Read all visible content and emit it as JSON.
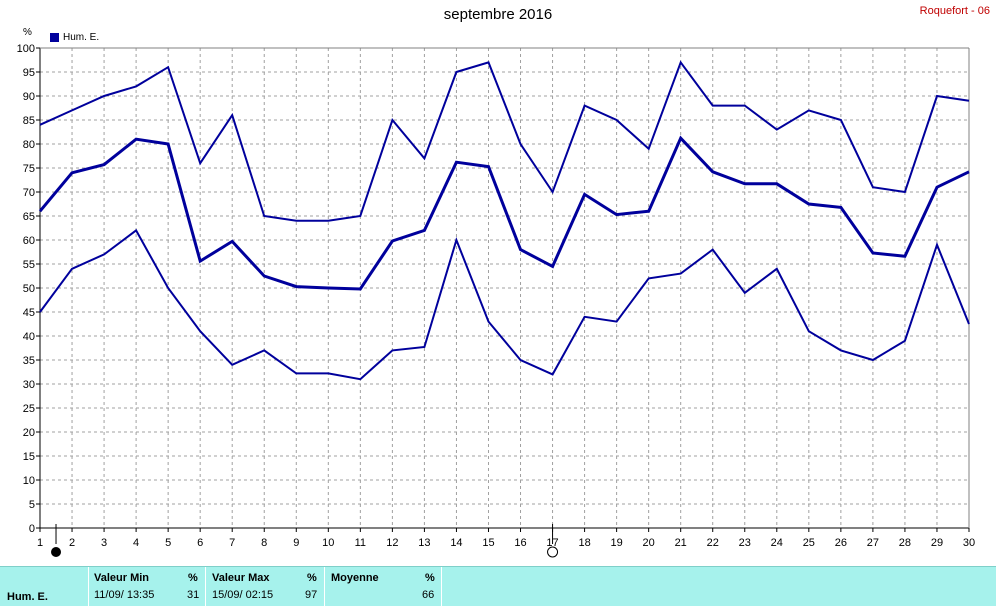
{
  "title": "septembre 2016",
  "station": "Roquefort - 06",
  "legend_label": "Hum. E.",
  "unit": "%",
  "colors": {
    "line": "#00009c",
    "grid": "#a0a0a0",
    "stats_bg": "#a6f2ec"
  },
  "chart_data": {
    "type": "line",
    "x": [
      1,
      2,
      3,
      4,
      5,
      6,
      7,
      8,
      9,
      10,
      11,
      12,
      13,
      14,
      15,
      16,
      17,
      18,
      19,
      20,
      21,
      22,
      23,
      24,
      25,
      26,
      27,
      28,
      29,
      30
    ],
    "xlim": [
      1,
      30
    ],
    "ylim": [
      0,
      100
    ],
    "yticks": [
      0,
      5,
      10,
      15,
      20,
      25,
      30,
      35,
      40,
      45,
      50,
      55,
      60,
      65,
      70,
      75,
      80,
      85,
      90,
      95,
      100
    ],
    "grid": true,
    "legend": "top-left",
    "series": [
      {
        "values": [
          84,
          87,
          90,
          92,
          96,
          76,
          86,
          65,
          64,
          64,
          65,
          85,
          77,
          95,
          97,
          80,
          70,
          88,
          85,
          79,
          97,
          88,
          88,
          83,
          87,
          85,
          71,
          70,
          90,
          89
        ]
      },
      {
        "name": "Hum. E.",
        "values": [
          66,
          74,
          75.7,
          81,
          80,
          55.6,
          59.7,
          52.5,
          50.3,
          50,
          49.8,
          59.8,
          62,
          76.2,
          75.3,
          58,
          54.5,
          69.5,
          65.3,
          66,
          81.2,
          74.2,
          71.7,
          71.7,
          67.5,
          66.8,
          57.3,
          56.6,
          71,
          74.2
        ]
      },
      {
        "values": [
          45,
          54,
          57,
          62,
          50,
          41,
          34,
          37,
          32.2,
          32.2,
          31,
          37,
          37.7,
          60,
          43,
          35,
          32,
          44,
          43,
          52,
          53,
          58,
          49,
          54,
          41,
          37,
          35,
          39,
          59,
          42.5
        ]
      }
    ],
    "markers": [
      {
        "x": 1.5,
        "type": "filled-circle"
      },
      {
        "x": 17,
        "type": "open-circle"
      }
    ]
  },
  "stats": {
    "series_label": "Hum. E.",
    "min": {
      "header": "Valeur Min",
      "unit": "%",
      "datetime": "11/09/  13:35",
      "value": "31"
    },
    "max": {
      "header": "Valeur Max",
      "unit": "%",
      "datetime": "15/09/  02:15",
      "value": "97"
    },
    "mean": {
      "header": "Moyenne",
      "unit": "%",
      "value": "66"
    }
  }
}
